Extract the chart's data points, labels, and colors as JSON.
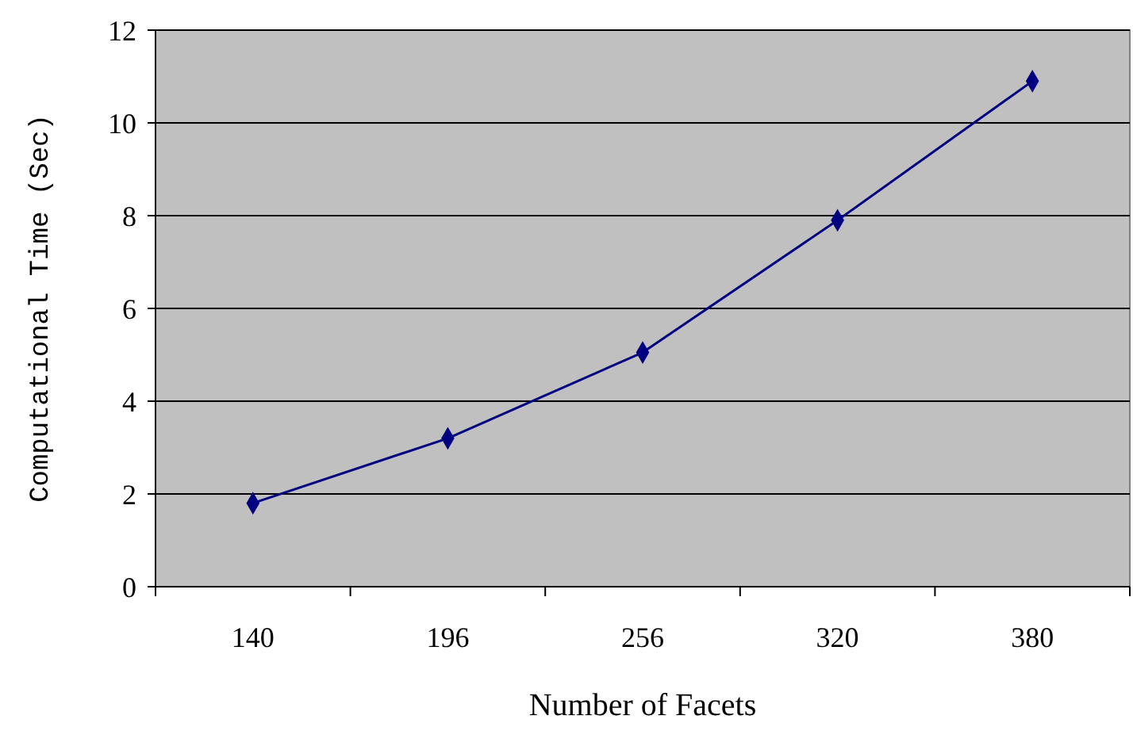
{
  "chart_data": {
    "type": "line",
    "xlabel": "Number of Facets",
    "ylabel": "Computational Time (Sec)",
    "categories": [
      "140",
      "196",
      "256",
      "320",
      "380"
    ],
    "series": [
      {
        "color": "#000080",
        "values": [
          1.8,
          3.2,
          5.05,
          7.9,
          10.9
        ]
      }
    ],
    "ylim": [
      0,
      12
    ],
    "yticks": [
      0,
      2,
      4,
      6,
      8,
      10,
      12
    ],
    "grid": "y",
    "marker": "diamond",
    "line_style": "solid"
  }
}
